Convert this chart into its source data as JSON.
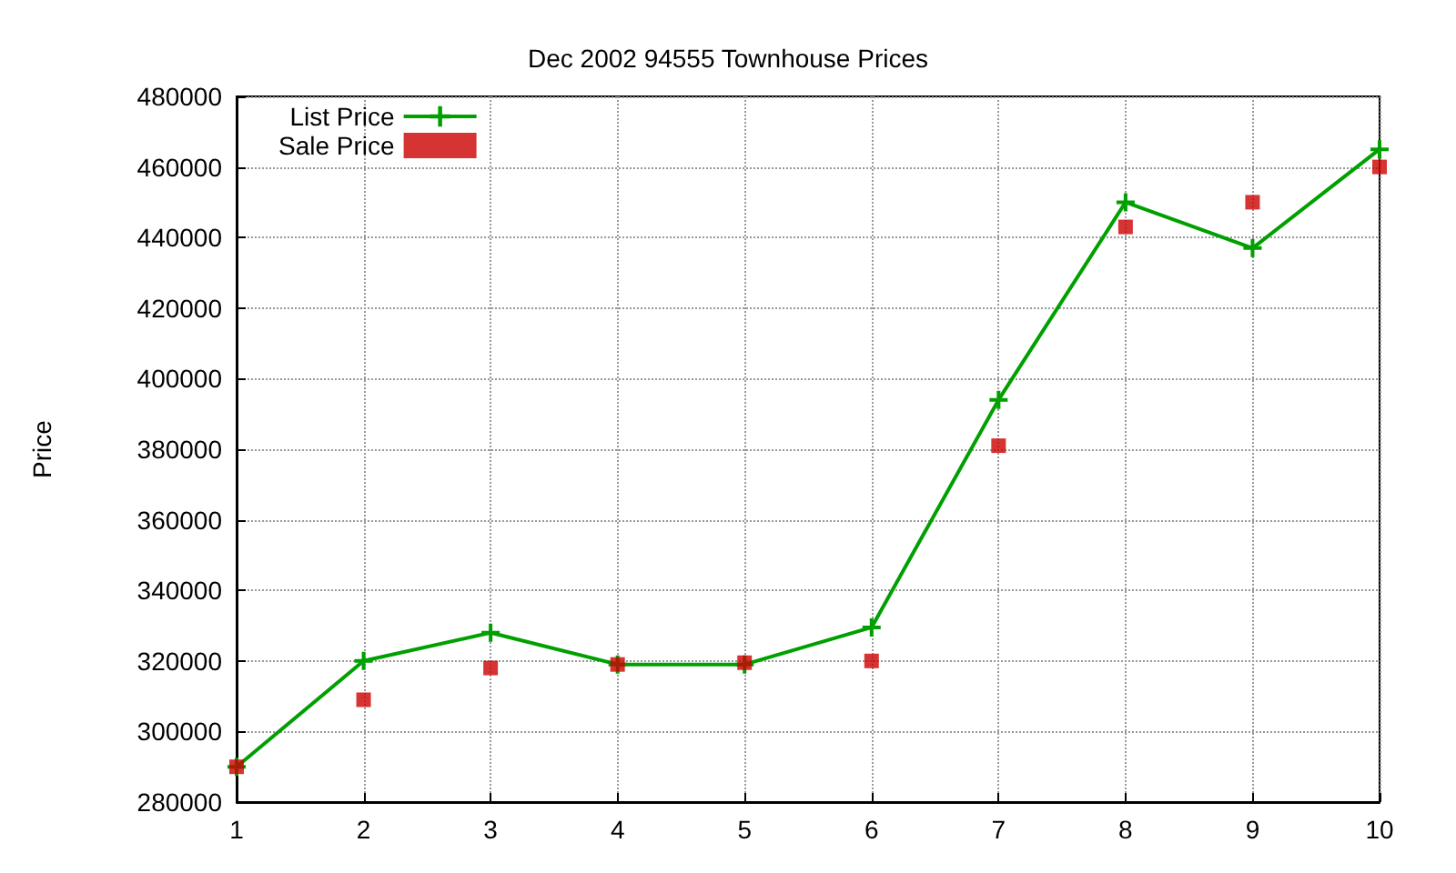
{
  "chart_data": {
    "type": "line",
    "title": "Dec 2002 94555 Townhouse Prices",
    "ylabel": "Price",
    "x": [
      1,
      2,
      3,
      4,
      5,
      6,
      7,
      8,
      9,
      10
    ],
    "series": [
      {
        "name": "List Price",
        "color": "#00a000",
        "marker": "cross",
        "values": [
          290000,
          320000,
          328000,
          319000,
          319000,
          329500,
          394000,
          450000,
          437000,
          465000
        ]
      },
      {
        "name": "Sale Price",
        "type": "scatter",
        "color": "#cc0000",
        "marker": "square",
        "values": [
          290000,
          309000,
          318000,
          319000,
          319500,
          320000,
          381000,
          443000,
          450000,
          460000
        ]
      }
    ],
    "xlim": [
      1,
      10
    ],
    "xticks": [
      1,
      2,
      3,
      4,
      5,
      6,
      7,
      8,
      9,
      10
    ],
    "ylim": [
      280000,
      480000
    ],
    "yticks": [
      280000,
      300000,
      320000,
      340000,
      360000,
      380000,
      400000,
      420000,
      440000,
      460000,
      480000
    ],
    "grid": true,
    "legend": "top left"
  }
}
